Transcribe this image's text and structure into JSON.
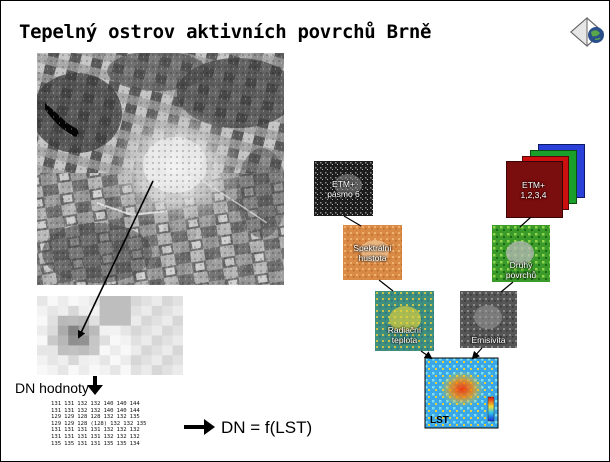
{
  "slide": {
    "title": "Tepelný ostrov aktivních povrchů Brně"
  },
  "images": {
    "satellite": "satellite-grayscale-image",
    "zoom": "pixel-zoom-image"
  },
  "dn": {
    "label": "DN hodnoty",
    "rows": [
      [
        "131",
        "131",
        "132",
        "132",
        "140",
        "140",
        "144"
      ],
      [
        "131",
        "131",
        "132",
        "132",
        "140",
        "140",
        "144"
      ],
      [
        "129",
        "129",
        "128",
        "128",
        "132",
        "132",
        "135"
      ],
      [
        "129",
        "129",
        "128",
        "(128)",
        "132",
        "132",
        "135"
      ],
      [
        "131",
        "131",
        "131",
        "131",
        "132",
        "132",
        "132"
      ],
      [
        "131",
        "131",
        "131",
        "131",
        "132",
        "132",
        "132"
      ],
      [
        "135",
        "135",
        "131",
        "131",
        "135",
        "135",
        "134"
      ]
    ]
  },
  "formula": "DN = f(LST)",
  "flow": {
    "etm6": [
      "ETM+",
      "pásmo 6"
    ],
    "ndvi": [
      "Spektrální",
      "hustota"
    ],
    "radiance": [
      "Radiační",
      "teplota"
    ],
    "etm1234": [
      "ETM+",
      "1,2,3,4"
    ],
    "landcover": [
      "Druhý",
      "povrchů"
    ],
    "emissivity": [
      "Emisivita"
    ],
    "lst": "LST"
  },
  "colors": {
    "etm_blue": "#2a40d8",
    "etm_green": "#1aa02a",
    "etm_red": "#cc1010",
    "etm_darkred": "#7a0d0d",
    "ndvi_orange": "#d98a45",
    "landcover_green": "#3a9b2a",
    "emissivity_gray": "#555555",
    "radiance_teal": "#3f8f7f"
  }
}
